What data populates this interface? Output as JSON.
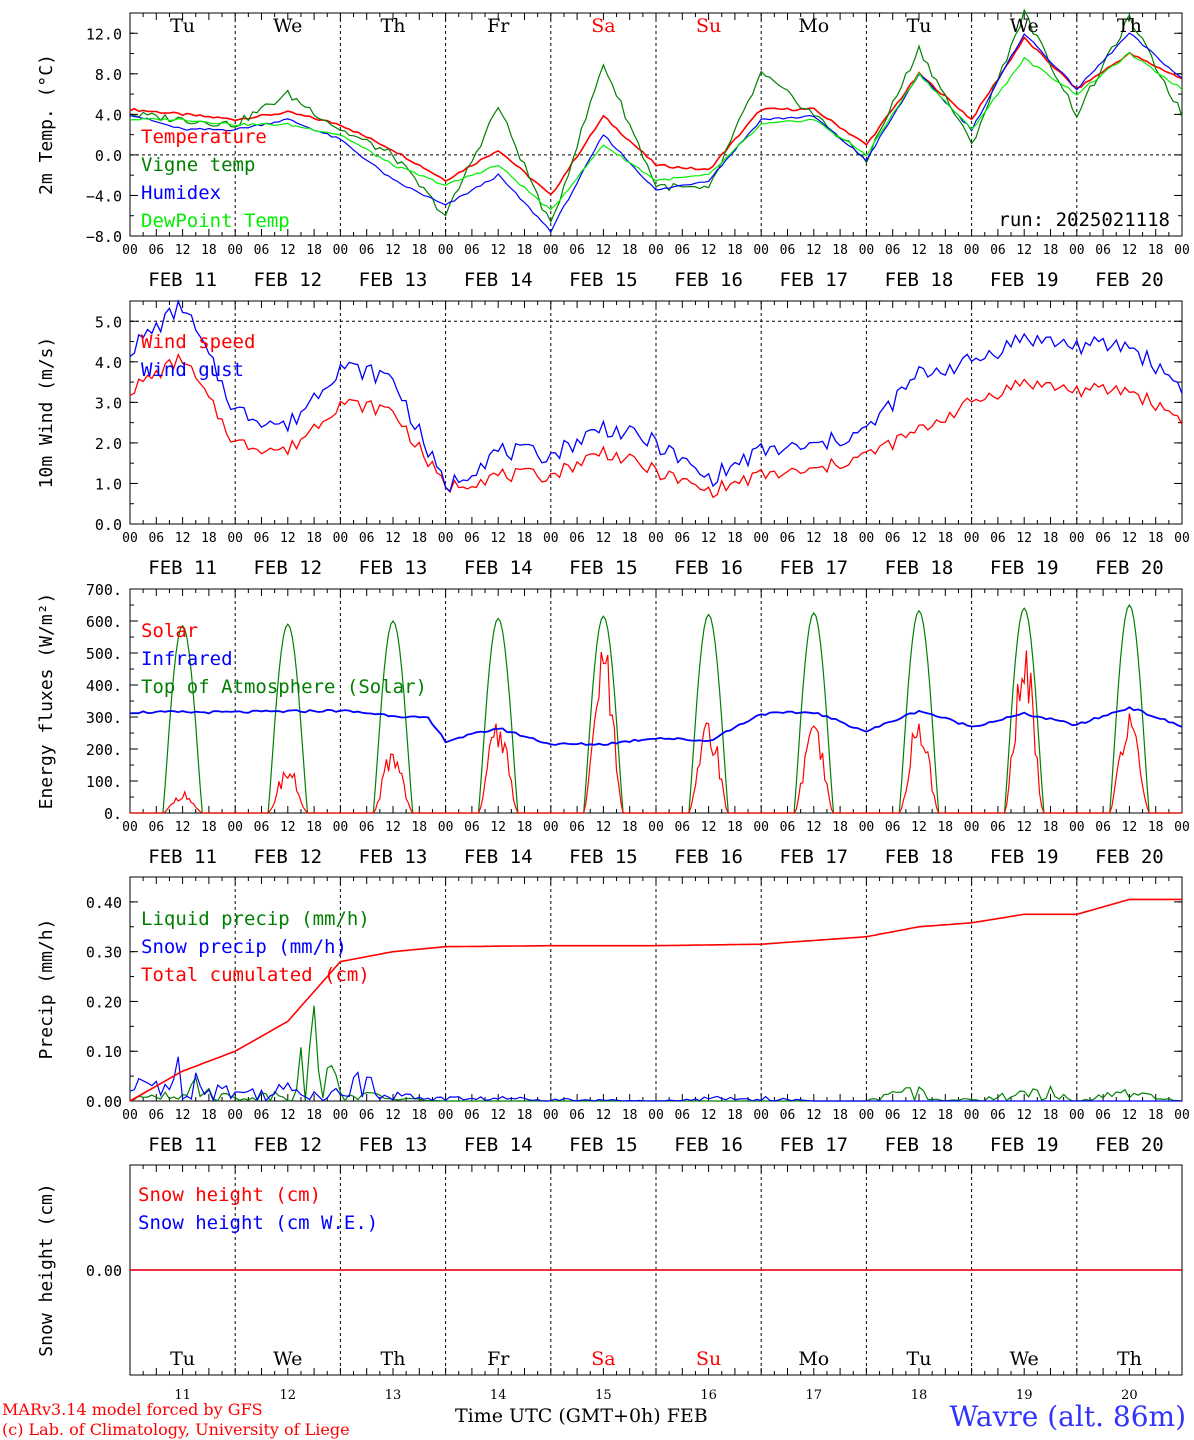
{
  "x_axis": {
    "hour_labels": [
      "00",
      "06",
      "12",
      "18"
    ],
    "date_labels": [
      "FEB 11",
      "FEB 12",
      "FEB 13",
      "FEB 14",
      "FEB 15",
      "FEB 16",
      "FEB 17",
      "FEB 18",
      "FEB 19",
      "FEB 20"
    ],
    "weekdays": [
      {
        "label": "Tu",
        "color": "#000000"
      },
      {
        "label": "We",
        "color": "#000000"
      },
      {
        "label": "Th",
        "color": "#000000"
      },
      {
        "label": "Fr",
        "color": "#000000"
      },
      {
        "label": "Sa",
        "color": "#ff0000"
      },
      {
        "label": "Su",
        "color": "#ff0000"
      },
      {
        "label": "Mo",
        "color": "#000000"
      },
      {
        "label": "Tu",
        "color": "#000000"
      },
      {
        "label": "We",
        "color": "#000000"
      },
      {
        "label": "Th",
        "color": "#000000"
      }
    ],
    "day_numbers": [
      "11",
      "12",
      "13",
      "14",
      "15",
      "16",
      "17",
      "18",
      "19",
      "20"
    ],
    "bottom_label": "Time UTC (GMT+0h)",
    "month_label": "FEB"
  },
  "footer": {
    "model_line": "MARv3.14 model forced by GFS",
    "credit_line": "(c) Lab. of Climatology, University of Liege",
    "station": "Wavre (alt. 86m)"
  },
  "chart_data": [
    {
      "type": "line",
      "ylabel": "2m Temp. (°C)",
      "ylim": [
        -8,
        14
      ],
      "yticks": [
        -8,
        -4,
        0,
        4,
        8,
        12
      ],
      "ytick_labels": [
        "−8.0",
        "−4.0",
        "0.0",
        "4.0",
        "8.0",
        "12.0"
      ],
      "annotation": "run: 2025021118",
      "x_hours_from_feb11_00": [
        0,
        12,
        24,
        36,
        48,
        60,
        72,
        84,
        96,
        108,
        120,
        132,
        144,
        156,
        168,
        180,
        192,
        204,
        216,
        228,
        240
      ],
      "series": [
        {
          "name": "Temperature",
          "color": "#ff0000",
          "values": [
            4.5,
            4.0,
            3.5,
            4.2,
            3.0,
            0.5,
            -2.5,
            0.5,
            -4.0,
            3.8,
            -1.0,
            -1.5,
            4.5,
            4.5,
            1.0,
            8.0,
            3.5,
            11.5,
            6.5,
            10.0,
            7.5
          ]
        },
        {
          "name": "Vigne temp",
          "color": "#008000",
          "values": [
            4.0,
            3.5,
            3.0,
            6.0,
            2.5,
            0,
            -6.0,
            4.8,
            -7.0,
            9.0,
            -3.0,
            -3.5,
            8.0,
            4.0,
            -0.5,
            10.5,
            1.0,
            14.0,
            4.0,
            13.5,
            4.0
          ]
        },
        {
          "name": "Humidex",
          "color": "#0000ff",
          "values": [
            4.0,
            2.5,
            2.5,
            3.5,
            1.5,
            -2.5,
            -5.0,
            -2.0,
            -7.5,
            2.0,
            -3.5,
            -2.5,
            3.5,
            3.8,
            -0.5,
            8.0,
            2.5,
            12.0,
            6.5,
            12.0,
            7.5
          ]
        },
        {
          "name": "DewPoint Temp",
          "color": "#00ee00",
          "values": [
            3.5,
            3.5,
            3.0,
            3.0,
            2.0,
            -1.0,
            -3.0,
            -1.0,
            -5.5,
            1.0,
            -2.5,
            -2.0,
            3.0,
            3.5,
            0,
            8.0,
            2.5,
            9.5,
            6.0,
            10.0,
            6.5
          ]
        }
      ]
    },
    {
      "type": "line",
      "ylabel": "10m Wind (m/s)",
      "ylim": [
        0,
        5.5
      ],
      "yticks": [
        0,
        1,
        2,
        3,
        4,
        5
      ],
      "ytick_labels": [
        "0.0",
        "1.0",
        "2.0",
        "3.0",
        "4.0",
        "5.0"
      ],
      "x_hours_from_feb11_00": [
        0,
        12,
        24,
        36,
        48,
        60,
        72,
        84,
        96,
        108,
        120,
        132,
        144,
        156,
        168,
        180,
        192,
        204,
        216,
        228,
        240
      ],
      "series": [
        {
          "name": "Wind speed",
          "color": "#ff0000",
          "values": [
            3.3,
            4.1,
            2.0,
            1.8,
            3.0,
            2.8,
            0.9,
            1.2,
            1.2,
            1.8,
            1.3,
            0.8,
            1.2,
            1.3,
            1.7,
            2.3,
            3.0,
            3.5,
            3.3,
            3.3,
            2.6
          ]
        },
        {
          "name": "Wind gust",
          "color": "#0000ff",
          "values": [
            4.3,
            5.4,
            2.8,
            2.4,
            3.9,
            3.6,
            0.9,
            1.8,
            1.7,
            2.4,
            2.0,
            1.1,
            1.8,
            1.9,
            2.3,
            3.7,
            4.0,
            4.6,
            4.4,
            4.4,
            3.4
          ]
        }
      ]
    },
    {
      "type": "line",
      "ylabel": "Energy fluxes (W/m²)",
      "ylim": [
        0,
        700
      ],
      "yticks": [
        0,
        100,
        200,
        300,
        400,
        500,
        600,
        700
      ],
      "ytick_labels": [
        "0.",
        "100.",
        "200.",
        "300.",
        "400.",
        "500.",
        "600.",
        "700."
      ],
      "series": [
        {
          "name": "Solar",
          "color": "#ff0000",
          "daily_peaks": [
            55,
            125,
            175,
            255,
            445,
            265,
            230,
            260,
            450,
            290
          ]
        },
        {
          "name": "Infrared",
          "color": "#0000ff",
          "x_hours_from_feb11_00": [
            0,
            24,
            48,
            68,
            72,
            84,
            96,
            108,
            120,
            132,
            144,
            156,
            168,
            180,
            192,
            204,
            216,
            228,
            240
          ],
          "values": [
            315,
            315,
            320,
            295,
            225,
            265,
            215,
            215,
            235,
            225,
            310,
            315,
            255,
            320,
            270,
            310,
            275,
            330,
            270
          ]
        },
        {
          "name": "Top of Atmosphere (Solar)",
          "color": "#008000",
          "daily_peaks": [
            585,
            590,
            600,
            608,
            615,
            620,
            625,
            632,
            640,
            650
          ]
        }
      ]
    },
    {
      "type": "line",
      "ylabel": "Precip (mm/h)",
      "ylim": [
        0,
        0.45
      ],
      "yticks": [
        0,
        0.1,
        0.2,
        0.3,
        0.4
      ],
      "ytick_labels": [
        "0.00",
        "0.10",
        "0.20",
        "0.30",
        "0.40"
      ],
      "series": [
        {
          "name": "Liquid precip (mm/h)",
          "color": "#008000",
          "x_hours_from_feb11_00": [
            0,
            12,
            24,
            36,
            40,
            42,
            48,
            60,
            72,
            108,
            168,
            178,
            186,
            210,
            216,
            228,
            234,
            240
          ],
          "values": [
            0,
            0.06,
            0.01,
            0.03,
            0.14,
            0.2,
            0.03,
            0.01,
            0,
            0,
            0,
            0.04,
            0,
            0.03,
            0,
            0.03,
            0.01,
            0
          ]
        },
        {
          "name": "Snow precip (mm/h)",
          "color": "#0000ff",
          "x_hours_from_feb11_00": [
            0,
            12,
            24,
            36,
            48,
            56,
            60,
            72,
            84,
            120,
            132,
            144,
            156,
            168,
            240
          ],
          "values": [
            0.04,
            0.1,
            0.03,
            0.04,
            0.03,
            0.1,
            0.02,
            0.01,
            0.01,
            0,
            0.01,
            0.01,
            0,
            0,
            0
          ]
        },
        {
          "name": "Total cumulated (cm)",
          "color": "#ff0000",
          "x_hours_from_feb11_00": [
            0,
            12,
            24,
            36,
            42,
            48,
            60,
            72,
            96,
            120,
            144,
            168,
            180,
            192,
            204,
            216,
            228,
            240
          ],
          "values": [
            0,
            0.06,
            0.1,
            0.16,
            0.22,
            0.28,
            0.3,
            0.31,
            0.312,
            0.312,
            0.315,
            0.33,
            0.35,
            0.358,
            0.375,
            0.375,
            0.405,
            0.405
          ]
        }
      ]
    },
    {
      "type": "line",
      "ylabel": "Snow height (cm)",
      "yticks": [
        0
      ],
      "ytick_labels": [
        "0.00"
      ],
      "series": [
        {
          "name": "Snow height (cm)",
          "color": "#ff0000",
          "values": [
            0,
            0
          ]
        },
        {
          "name": "Snow height (cm W.E.)",
          "color": "#0000ff",
          "values": [
            0,
            0
          ]
        }
      ]
    }
  ]
}
